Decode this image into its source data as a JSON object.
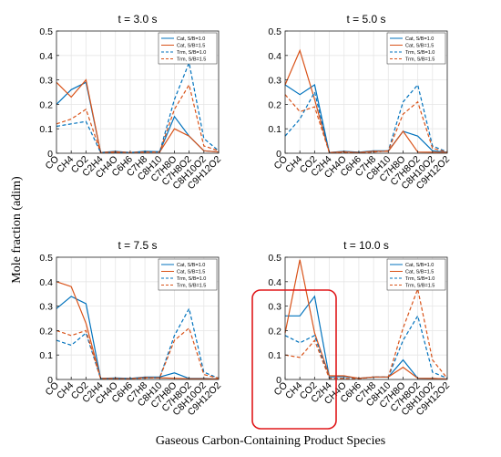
{
  "figure": {
    "ylabel": "Mole fraction (adim)",
    "xlabel": "Gaseous Carbon-Containing Product Species"
  },
  "chart_data": [
    {
      "type": "line",
      "title": "t = 3.0 s",
      "categories": [
        "CO",
        "CH4",
        "CO2",
        "C2H4",
        "CH4O",
        "C6H6",
        "C7H8",
        "C8H10",
        "C7H8O",
        "C7H8O2",
        "C8H10O2",
        "C9H12O2"
      ],
      "ylim": [
        0,
        0.5
      ],
      "yticks": [
        0,
        0.1,
        0.2,
        0.3,
        0.4,
        0.5
      ],
      "grid": true,
      "legend_position": "top-right",
      "series": [
        {
          "name": "Cat, S/B=1.0",
          "color": "#0072bd",
          "dash": false,
          "values": [
            0.2,
            0.26,
            0.29,
            0.003,
            0.008,
            0.003,
            0.008,
            0.006,
            0.15,
            0.07,
            0.01,
            0.005
          ]
        },
        {
          "name": "Cat, S/B=1.5",
          "color": "#d95319",
          "dash": false,
          "values": [
            0.29,
            0.23,
            0.3,
            0.003,
            0.006,
            0.003,
            0.005,
            0.005,
            0.1,
            0.07,
            0.01,
            0.005
          ]
        },
        {
          "name": "Trm, S/B=1.0",
          "color": "#0072bd",
          "dash": true,
          "values": [
            0.11,
            0.12,
            0.13,
            0.003,
            0.003,
            0.003,
            0.005,
            0.005,
            0.22,
            0.37,
            0.06,
            0.01
          ]
        },
        {
          "name": "Trm, S/B=1.5",
          "color": "#d95319",
          "dash": true,
          "values": [
            0.12,
            0.14,
            0.18,
            0.003,
            0.003,
            0.003,
            0.005,
            0.005,
            0.18,
            0.28,
            0.03,
            0.01
          ]
        }
      ]
    },
    {
      "type": "line",
      "title": "t = 5.0 s",
      "categories": [
        "CO",
        "CH4",
        "CO2",
        "C2H4",
        "CH4O",
        "C6H6",
        "C7H8",
        "C8H10",
        "C7H8O",
        "C7H8O2",
        "C8H10O2",
        "C9H12O2"
      ],
      "ylim": [
        0,
        0.5
      ],
      "yticks": [
        0,
        0.1,
        0.2,
        0.3,
        0.4,
        0.5
      ],
      "grid": true,
      "legend_position": "top-right",
      "series": [
        {
          "name": "Cat, S/B=1.0",
          "color": "#0072bd",
          "dash": false,
          "values": [
            0.28,
            0.24,
            0.28,
            0.003,
            0.008,
            0.004,
            0.01,
            0.01,
            0.09,
            0.07,
            0.01,
            0.004
          ]
        },
        {
          "name": "Cat, S/B=1.5",
          "color": "#d95319",
          "dash": false,
          "values": [
            0.28,
            0.42,
            0.22,
            0.003,
            0.006,
            0.003,
            0.008,
            0.008,
            0.09,
            0.005,
            0.004,
            0.003
          ]
        },
        {
          "name": "Trm, S/B=1.0",
          "color": "#0072bd",
          "dash": true,
          "values": [
            0.07,
            0.14,
            0.25,
            0.003,
            0.003,
            0.003,
            0.005,
            0.01,
            0.21,
            0.28,
            0.03,
            0.005
          ]
        },
        {
          "name": "Trm, S/B=1.5",
          "color": "#d95319",
          "dash": true,
          "values": [
            0.24,
            0.17,
            0.19,
            0.003,
            0.003,
            0.003,
            0.005,
            0.01,
            0.16,
            0.21,
            0.02,
            0.005
          ]
        }
      ]
    },
    {
      "type": "line",
      "title": "t = 7.5 s",
      "categories": [
        "CO",
        "CH4",
        "CO2",
        "C2H4",
        "CH4O",
        "C6H6",
        "C7H8",
        "C8H10",
        "C7H8O",
        "C7H8O2",
        "C8H10O2",
        "C9H12O2"
      ],
      "ylim": [
        0,
        0.5
      ],
      "yticks": [
        0,
        0.1,
        0.2,
        0.3,
        0.4,
        0.5
      ],
      "grid": true,
      "legend_position": "top-right",
      "series": [
        {
          "name": "Cat, S/B=1.0",
          "color": "#0072bd",
          "dash": false,
          "values": [
            0.29,
            0.34,
            0.31,
            0.004,
            0.006,
            0.004,
            0.01,
            0.01,
            0.027,
            0.004,
            0.004,
            0.002
          ]
        },
        {
          "name": "Cat, S/B=1.5",
          "color": "#d95319",
          "dash": false,
          "values": [
            0.4,
            0.38,
            0.23,
            0.004,
            0.004,
            0.003,
            0.008,
            0.007,
            0.005,
            0.003,
            0.003,
            0.002
          ]
        },
        {
          "name": "Trm, S/B=1.0",
          "color": "#0072bd",
          "dash": true,
          "values": [
            0.16,
            0.14,
            0.19,
            0.003,
            0.003,
            0.003,
            0.006,
            0.007,
            0.18,
            0.29,
            0.03,
            0.005
          ]
        },
        {
          "name": "Trm, S/B=1.5",
          "color": "#d95319",
          "dash": true,
          "values": [
            0.2,
            0.18,
            0.2,
            0.003,
            0.003,
            0.003,
            0.006,
            0.007,
            0.16,
            0.21,
            0.02,
            0.005
          ]
        }
      ]
    },
    {
      "type": "line",
      "title": "t = 10.0 s",
      "categories": [
        "CO",
        "CH4",
        "CO2",
        "C2H4",
        "CH4O",
        "C6H6",
        "C7H8",
        "C8H10",
        "C7H8O",
        "C7H8O2",
        "C8H10O2",
        "C9H12O2"
      ],
      "ylim": [
        0,
        0.5
      ],
      "yticks": [
        0,
        0.1,
        0.2,
        0.3,
        0.4,
        0.5
      ],
      "grid": true,
      "legend_position": "top-right",
      "series": [
        {
          "name": "Cat, S/B=1.0",
          "color": "#0072bd",
          "dash": false,
          "values": [
            0.26,
            0.26,
            0.34,
            0.01,
            0.012,
            0.005,
            0.01,
            0.01,
            0.08,
            0.005,
            0.004,
            0.002
          ]
        },
        {
          "name": "Cat, S/B=1.5",
          "color": "#d95319",
          "dash": false,
          "values": [
            0.19,
            0.49,
            0.19,
            0.015,
            0.015,
            0.005,
            0.01,
            0.01,
            0.05,
            0.005,
            0.004,
            0.002
          ]
        },
        {
          "name": "Trm, S/B=1.0",
          "color": "#0072bd",
          "dash": true,
          "values": [
            0.18,
            0.15,
            0.18,
            0.005,
            0.004,
            0.003,
            0.01,
            0.01,
            0.16,
            0.26,
            0.03,
            0.005
          ]
        },
        {
          "name": "Trm, S/B=1.5",
          "color": "#d95319",
          "dash": true,
          "values": [
            0.1,
            0.09,
            0.16,
            0.005,
            0.004,
            0.003,
            0.01,
            0.01,
            0.21,
            0.37,
            0.08,
            0.005
          ]
        }
      ]
    }
  ],
  "highlight_color": "#e0181b"
}
